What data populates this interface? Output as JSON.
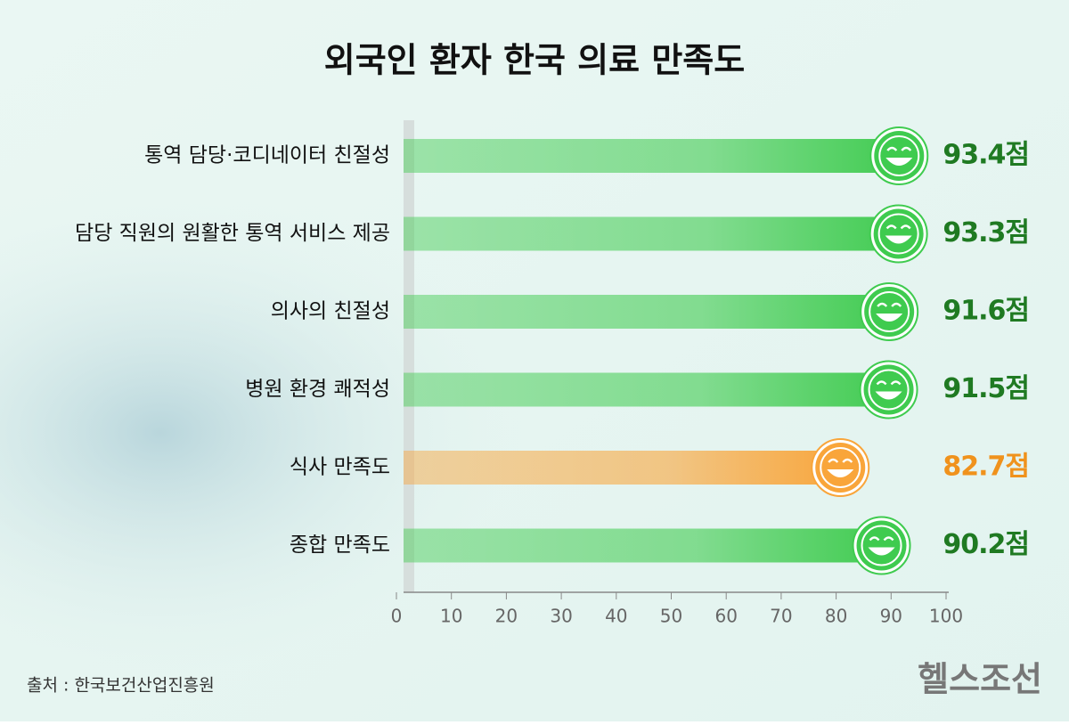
{
  "chart_data": {
    "type": "bar",
    "title": "외국인 환자 한국 의료 만족도",
    "categories": [
      "통역 담당·코디네이터 친절성",
      "담당 직원의 원활한 통역 서비스 제공",
      "의사의 친절성",
      "병원 환경 쾌적성",
      "식사 만족도",
      "종합 만족도"
    ],
    "values": [
      93.4,
      93.3,
      91.6,
      91.5,
      82.7,
      90.2
    ],
    "value_labels": [
      "93.4점",
      "93.3점",
      "91.6점",
      "91.5점",
      "82.7점",
      "90.2점"
    ],
    "colors": [
      "#3fcb4f",
      "#3fcb4f",
      "#3fcb4f",
      "#3fcb4f",
      "#f9a53a",
      "#3fcb4f"
    ],
    "label_colors": [
      "#1f7a22",
      "#1f7a22",
      "#1f7a22",
      "#1f7a22",
      "#f0921c",
      "#1f7a22"
    ],
    "xlim": [
      0,
      100
    ],
    "xticks": [
      0,
      10,
      20,
      30,
      40,
      50,
      60,
      70,
      80,
      90,
      100
    ]
  },
  "source": "출처 : 한국보건산업진흥원",
  "brand": "헬스조선"
}
